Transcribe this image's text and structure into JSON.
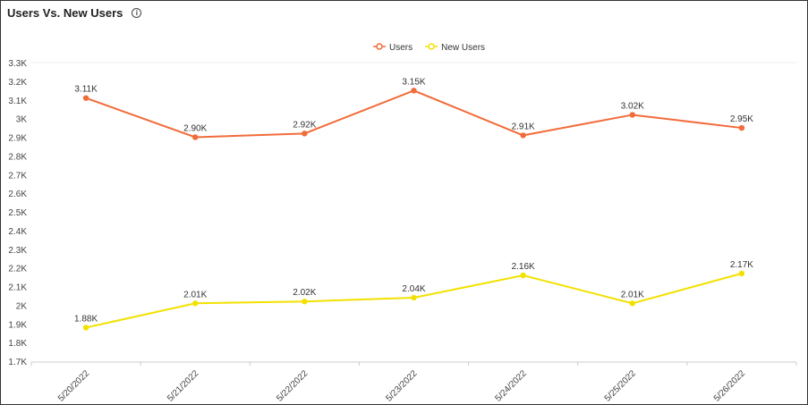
{
  "header": {
    "title": "Users Vs. New Users",
    "info_icon": "info-circle-icon"
  },
  "chart_data": {
    "type": "line",
    "title": "Users Vs. New Users",
    "categories": [
      "5/20/2022",
      "5/21/2022",
      "5/22/2022",
      "5/23/2022",
      "5/24/2022",
      "5/25/2022",
      "5/26/2022"
    ],
    "series": [
      {
        "name": "Users",
        "color": "#f26b3a",
        "values": [
          3110,
          2900,
          2920,
          3150,
          2910,
          3020,
          2950
        ],
        "labels": [
          "3.11K",
          "2.90K",
          "2.92K",
          "3.15K",
          "2.91K",
          "3.02K",
          "2.95K"
        ]
      },
      {
        "name": "New Users",
        "color": "#f2e100",
        "values": [
          1880,
          2010,
          2020,
          2040,
          2160,
          2010,
          2170
        ],
        "labels": [
          "1.88K",
          "2.01K",
          "2.02K",
          "2.04K",
          "2.16K",
          "2.01K",
          "2.17K"
        ]
      }
    ],
    "ylim": [
      1700,
      3300
    ],
    "yticks": [
      "1.7K",
      "1.8K",
      "1.9K",
      "2K",
      "2.1K",
      "2.2K",
      "2.3K",
      "2.4K",
      "2.5K",
      "2.6K",
      "2.7K",
      "2.8K",
      "2.9K",
      "3K",
      "3.1K",
      "3.2K",
      "3.3K"
    ],
    "legend": "top-center",
    "grid": false
  }
}
